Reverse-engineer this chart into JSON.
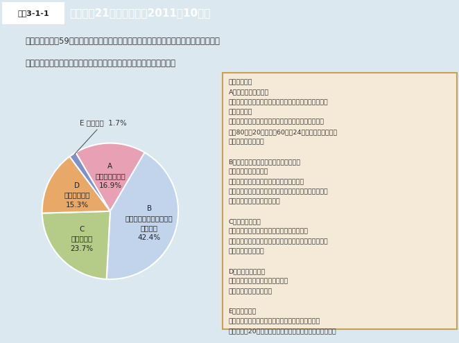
{
  "title": "健康日本21の最終評価（2011年10月）",
  "title_prefix": "図表3-1-1",
  "subtitle_line1": "９分野のうちの59項目の達成状況は、「目標値に達した」と「目標値に達していないが",
  "subtitle_line2": "改善傾向にある」を合わせ、全体の約６割で一定の改善がみられた。",
  "slices": [
    {
      "value": 16.9,
      "color": "#e8a0b4",
      "label": "A\n目標値に達した\n16.9%",
      "r": 0.52
    },
    {
      "value": 42.4,
      "color": "#c2d4ec",
      "label": "B\n目標値に達していないが\n改善傾向\n42.4%",
      "r": 0.6
    },
    {
      "value": 23.7,
      "color": "#b4cc88",
      "label": "C\n変わらない\n23.7%",
      "r": 0.58
    },
    {
      "value": 15.3,
      "color": "#e8a868",
      "label": "D\n悪化している\n15.3%",
      "r": 0.54
    },
    {
      "value": 1.7,
      "color": "#8090c8",
      "label": "E 評価困難  1.7%",
      "r": 1.35
    }
  ],
  "bg_color": "#dce8f0",
  "header_bg": "#5b8db8",
  "box_bg": "#f5ead8",
  "box_border": "#c8a050",
  "text_color": "#333333",
  "text_lines": [
    {
      "text": "【主な項目】",
      "gap_before": false
    },
    {
      "text": "A（目標値に達した）",
      "gap_before": false
    },
    {
      "text": "　・メタボリックシンドロームを認知している国民の割",
      "gap_before": false
    },
    {
      "text": "　　合の増加",
      "gap_before": false
    },
    {
      "text": "　・高齢者で外出について積極的態度をもつ人の増加",
      "gap_before": false
    },
    {
      "text": "　・80歳で20歯以上、60歳で24歯以上の自分の歯を",
      "gap_before": false
    },
    {
      "text": "　　有する人の増加",
      "gap_before": false
    },
    {
      "text": "",
      "gap_before": false
    },
    {
      "text": "B（目標値に達していないが改善傾向）",
      "gap_before": false
    },
    {
      "text": "　・食塩摂取量の減少",
      "gap_before": false
    },
    {
      "text": "　・意識的に運動を心がけている人の増加",
      "gap_before": false
    },
    {
      "text": "　・喫煙が及ぼす健康影響についての十分な知識の普及",
      "gap_before": false
    },
    {
      "text": "　・糖尿病やがん検診の促進",
      "gap_before": false
    },
    {
      "text": "",
      "gap_before": false
    },
    {
      "text": "C（変わらない）",
      "gap_before": false
    },
    {
      "text": "　・自殺者の減少、多量に飲酒する人の減少",
      "gap_before": false
    },
    {
      "text": "　・メタボリックシンドロームの該当者・予備群の減少",
      "gap_before": false
    },
    {
      "text": "　・高脂血症の減少",
      "gap_before": false
    },
    {
      "text": "",
      "gap_before": false
    },
    {
      "text": "D（悪化している）",
      "gap_before": false
    },
    {
      "text": "　・日常生活における歩数の増加",
      "gap_before": false
    },
    {
      "text": "　・糖尿病合併症の減少",
      "gap_before": false
    },
    {
      "text": "",
      "gap_before": false
    },
    {
      "text": "E（評価困難）",
      "gap_before": false
    },
    {
      "text": "　・特定健康診査・特定保健指導の受診者数の向上",
      "gap_before": false
    },
    {
      "text": "　　（平成20年からの２か年のデータに限定されたため）",
      "gap_before": false
    }
  ]
}
